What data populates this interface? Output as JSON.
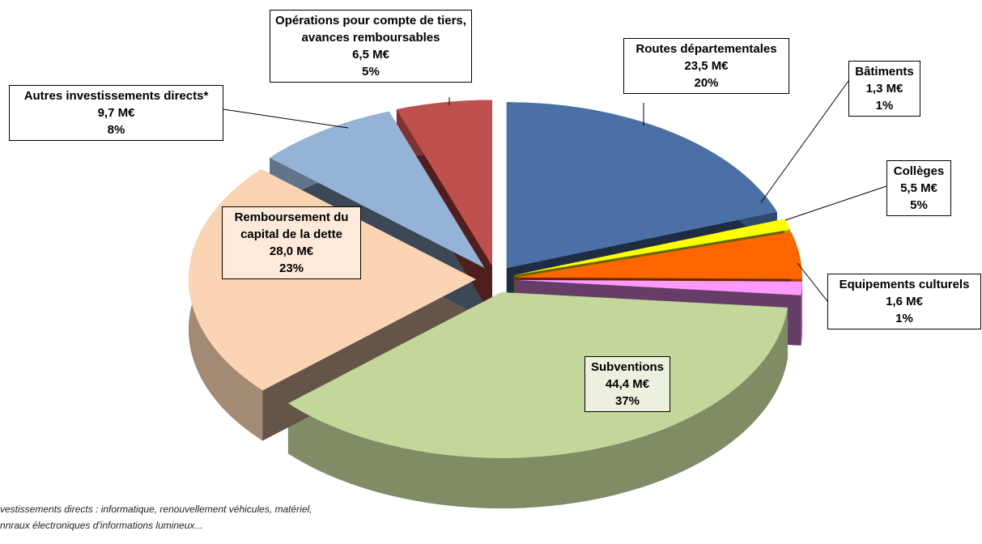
{
  "chart_data": {
    "type": "pie",
    "categories": [
      "Routes départementales",
      "Bâtiments",
      "Collèges",
      "Equipements culturels",
      "Subventions",
      "Remboursement du capital de la dette",
      "Autres investissements directs*",
      "Opérations pour compte de tiers, avances remboursables"
    ],
    "values": [
      23.5,
      1.3,
      5.5,
      1.6,
      44.4,
      28.0,
      9.7,
      6.5
    ],
    "value_labels": [
      "23,5 M€",
      "1,3 M€",
      "5,5 M€",
      "1,6 M€",
      "44,4 M€",
      "28,0 M€",
      "9,7 M€",
      "6,5 M€"
    ],
    "percent_labels": [
      "20%",
      "1%",
      "5%",
      "1%",
      "37%",
      "23%",
      "8%",
      "5%"
    ],
    "colors": [
      "#4a70a6",
      "#ffff00",
      "#ff6600",
      "#ff99ff",
      "#c4d79b",
      "#fbd4b4",
      "#95b3d7",
      "#c0504d"
    ],
    "note": [
      "vestissements directs : informatique, renouvellement véhicules, matériel,",
      "nnraux électroniques d'informations lumineux..."
    ]
  }
}
